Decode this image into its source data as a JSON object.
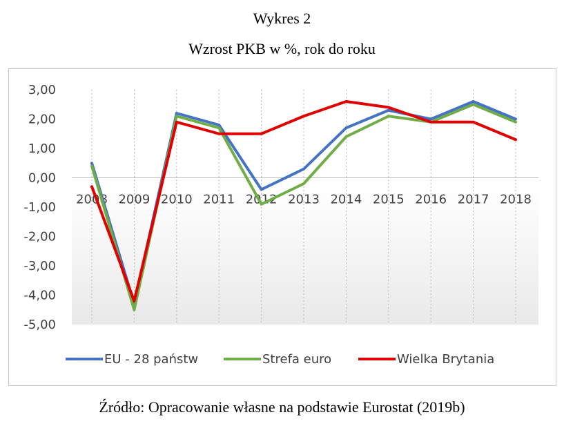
{
  "figure": {
    "label": "Wykres 2",
    "title": "Wzrost PKB w %, rok do roku",
    "source": "Źródło: Opracowanie własne na podstawie Eurostat (2019b)"
  },
  "chart_data": {
    "type": "line",
    "title": "",
    "xlabel": "",
    "ylabel": "",
    "ylim": [
      -5,
      3
    ],
    "yticks": [
      "3,00",
      "2,00",
      "1,00",
      "0,00",
      "-1,00",
      "-2,00",
      "-3,00",
      "-4,00",
      "-5,00"
    ],
    "ytick_values": [
      3,
      2,
      1,
      0,
      -1,
      -2,
      -3,
      -4,
      -5
    ],
    "categories": [
      "2008",
      "2009",
      "2010",
      "2011",
      "2012",
      "2013",
      "2014",
      "2015",
      "2016",
      "2017",
      "2018"
    ],
    "grid": "vertical dotted",
    "legend_position": "bottom",
    "series": [
      {
        "name": "EU - 28 państw",
        "color": "#4472c4",
        "values": [
          0.5,
          -4.3,
          2.2,
          1.8,
          -0.4,
          0.3,
          1.7,
          2.3,
          2.0,
          2.6,
          2.0
        ]
      },
      {
        "name": "Strefa euro",
        "color": "#70ad47",
        "values": [
          0.4,
          -4.5,
          2.1,
          1.7,
          -0.9,
          -0.2,
          1.4,
          2.1,
          1.9,
          2.5,
          1.9
        ]
      },
      {
        "name": "Wielka Brytania",
        "color": "#e00000",
        "values": [
          -0.3,
          -4.2,
          1.9,
          1.5,
          1.5,
          2.1,
          2.6,
          2.4,
          1.9,
          1.9,
          1.3
        ]
      }
    ]
  }
}
